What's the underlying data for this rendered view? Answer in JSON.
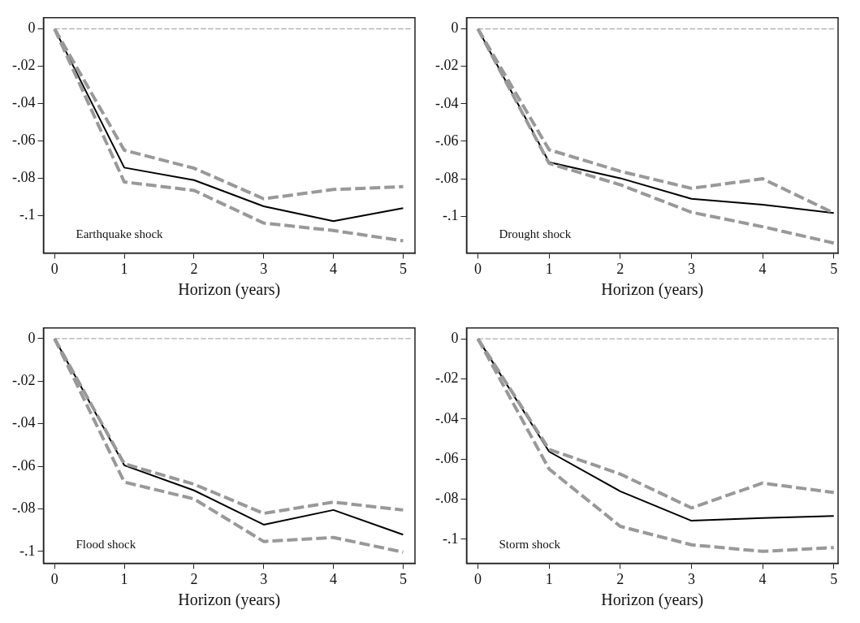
{
  "chart_data": [
    {
      "type": "line",
      "xlabel": "Horizon (years)",
      "annotations": [
        "Earthquake shock"
      ],
      "x": [
        0,
        1,
        2,
        3,
        4,
        5
      ],
      "xlim": [
        -0.16,
        5.17
      ],
      "xticks": [
        0,
        1,
        2,
        3,
        4,
        5
      ],
      "ylim": [
        -0.12,
        0.006
      ],
      "yticks": [
        {
          "value": 0,
          "label": "0"
        },
        {
          "value": -0.02,
          "label": "-.02"
        },
        {
          "value": -0.04,
          "label": "-.04"
        },
        {
          "value": -0.06,
          "label": "-.06"
        },
        {
          "value": -0.08,
          "label": "-.08"
        },
        {
          "value": -0.1,
          "label": "-.1"
        }
      ],
      "grid": false,
      "legend": false,
      "ref_lines": [
        {
          "axis": "y",
          "value": 0,
          "color": "#999999",
          "line_style": "dashed"
        }
      ],
      "series": [
        {
          "color": "#999999",
          "line_style": "dashed",
          "values": [
            0,
            -0.065,
            -0.0746,
            -0.091,
            -0.086,
            -0.0845
          ]
        },
        {
          "color": "#999999",
          "line_style": "dashed",
          "values": [
            0,
            -0.082,
            -0.0865,
            -0.104,
            -0.108,
            -0.1135
          ]
        },
        {
          "color": "#000000",
          "line_style": "solid",
          "values": [
            0,
            -0.0743,
            -0.081,
            -0.095,
            -0.103,
            -0.096
          ]
        }
      ]
    },
    {
      "type": "line",
      "xlabel": "Horizon (years)",
      "annotations": [
        "Drought shock"
      ],
      "x": [
        0,
        1,
        2,
        3,
        4,
        5
      ],
      "xlim": [
        -0.16,
        5.06
      ],
      "xticks": [
        0,
        1,
        2,
        3,
        4,
        5
      ],
      "ylim": [
        -0.1196,
        0.006
      ],
      "yticks": [
        {
          "value": 0,
          "label": "0"
        },
        {
          "value": -0.02,
          "label": "-.02"
        },
        {
          "value": -0.04,
          "label": "-.04"
        },
        {
          "value": -0.06,
          "label": "-.06"
        },
        {
          "value": -0.08,
          "label": "-.08"
        },
        {
          "value": -0.1,
          "label": "-.1"
        }
      ],
      "grid": false,
      "legend": false,
      "ref_lines": [
        {
          "axis": "y",
          "value": 0,
          "color": "#999999",
          "line_style": "dashed"
        }
      ],
      "series": [
        {
          "color": "#999999",
          "line_style": "dashed",
          "values": [
            0,
            -0.0645,
            -0.076,
            -0.0851,
            -0.08,
            -0.0983
          ]
        },
        {
          "color": "#999999",
          "line_style": "dashed",
          "values": [
            0,
            -0.0718,
            -0.0832,
            -0.0979,
            -0.1056,
            -0.1143
          ]
        },
        {
          "color": "#000000",
          "line_style": "solid",
          "values": [
            0,
            -0.0712,
            -0.0797,
            -0.0907,
            -0.0938,
            -0.0983
          ]
        }
      ]
    },
    {
      "type": "line",
      "xlabel": "Horizon (years)",
      "annotations": [
        "Flood shock"
      ],
      "x": [
        0,
        1,
        2,
        3,
        4,
        5
      ],
      "xlim": [
        -0.16,
        5.17
      ],
      "xticks": [
        0,
        1,
        2,
        3,
        4,
        5
      ],
      "ylim": [
        -0.1055,
        0.005
      ],
      "yticks": [
        {
          "value": 0,
          "label": "0"
        },
        {
          "value": -0.02,
          "label": "-.02"
        },
        {
          "value": -0.04,
          "label": "-.04"
        },
        {
          "value": -0.06,
          "label": "-.06"
        },
        {
          "value": -0.08,
          "label": "-.08"
        },
        {
          "value": -0.1,
          "label": "-.1"
        }
      ],
      "grid": false,
      "legend": false,
      "ref_lines": [
        {
          "axis": "y",
          "value": 0,
          "color": "#999999",
          "line_style": "dashed"
        }
      ],
      "series": [
        {
          "color": "#999999",
          "line_style": "dashed",
          "values": [
            0,
            -0.0588,
            -0.0684,
            -0.0821,
            -0.0768,
            -0.0805
          ]
        },
        {
          "color": "#999999",
          "line_style": "dashed",
          "values": [
            0,
            -0.0674,
            -0.0753,
            -0.0953,
            -0.0934,
            -0.1003
          ]
        },
        {
          "color": "#000000",
          "line_style": "solid",
          "values": [
            0,
            -0.0595,
            -0.0713,
            -0.0874,
            -0.0805,
            -0.0921
          ]
        }
      ]
    },
    {
      "type": "line",
      "xlabel": "Horizon (years)",
      "annotations": [
        "Storm shock"
      ],
      "x": [
        0,
        1,
        2,
        3,
        4,
        5
      ],
      "xlim": [
        -0.16,
        5.06
      ],
      "xticks": [
        0,
        1,
        2,
        3,
        4,
        5
      ],
      "ylim": [
        -0.112,
        0.0054
      ],
      "yticks": [
        {
          "value": 0,
          "label": "0"
        },
        {
          "value": -0.02,
          "label": "-.02"
        },
        {
          "value": -0.04,
          "label": "-.04"
        },
        {
          "value": -0.06,
          "label": "-.06"
        },
        {
          "value": -0.08,
          "label": "-.08"
        },
        {
          "value": -0.1,
          "label": "-.1"
        }
      ],
      "grid": false,
      "legend": false,
      "ref_lines": [
        {
          "axis": "y",
          "value": 0,
          "color": "#999999",
          "line_style": "dashed"
        }
      ],
      "series": [
        {
          "color": "#999999",
          "line_style": "dashed",
          "values": [
            0,
            -0.0552,
            -0.0675,
            -0.0844,
            -0.072,
            -0.0767
          ]
        },
        {
          "color": "#999999",
          "line_style": "dashed",
          "values": [
            0,
            -0.065,
            -0.0936,
            -0.1028,
            -0.1061,
            -0.1042
          ]
        },
        {
          "color": "#000000",
          "line_style": "solid",
          "values": [
            0,
            -0.0563,
            -0.0761,
            -0.0908,
            -0.0894,
            -0.0884
          ]
        }
      ]
    }
  ]
}
